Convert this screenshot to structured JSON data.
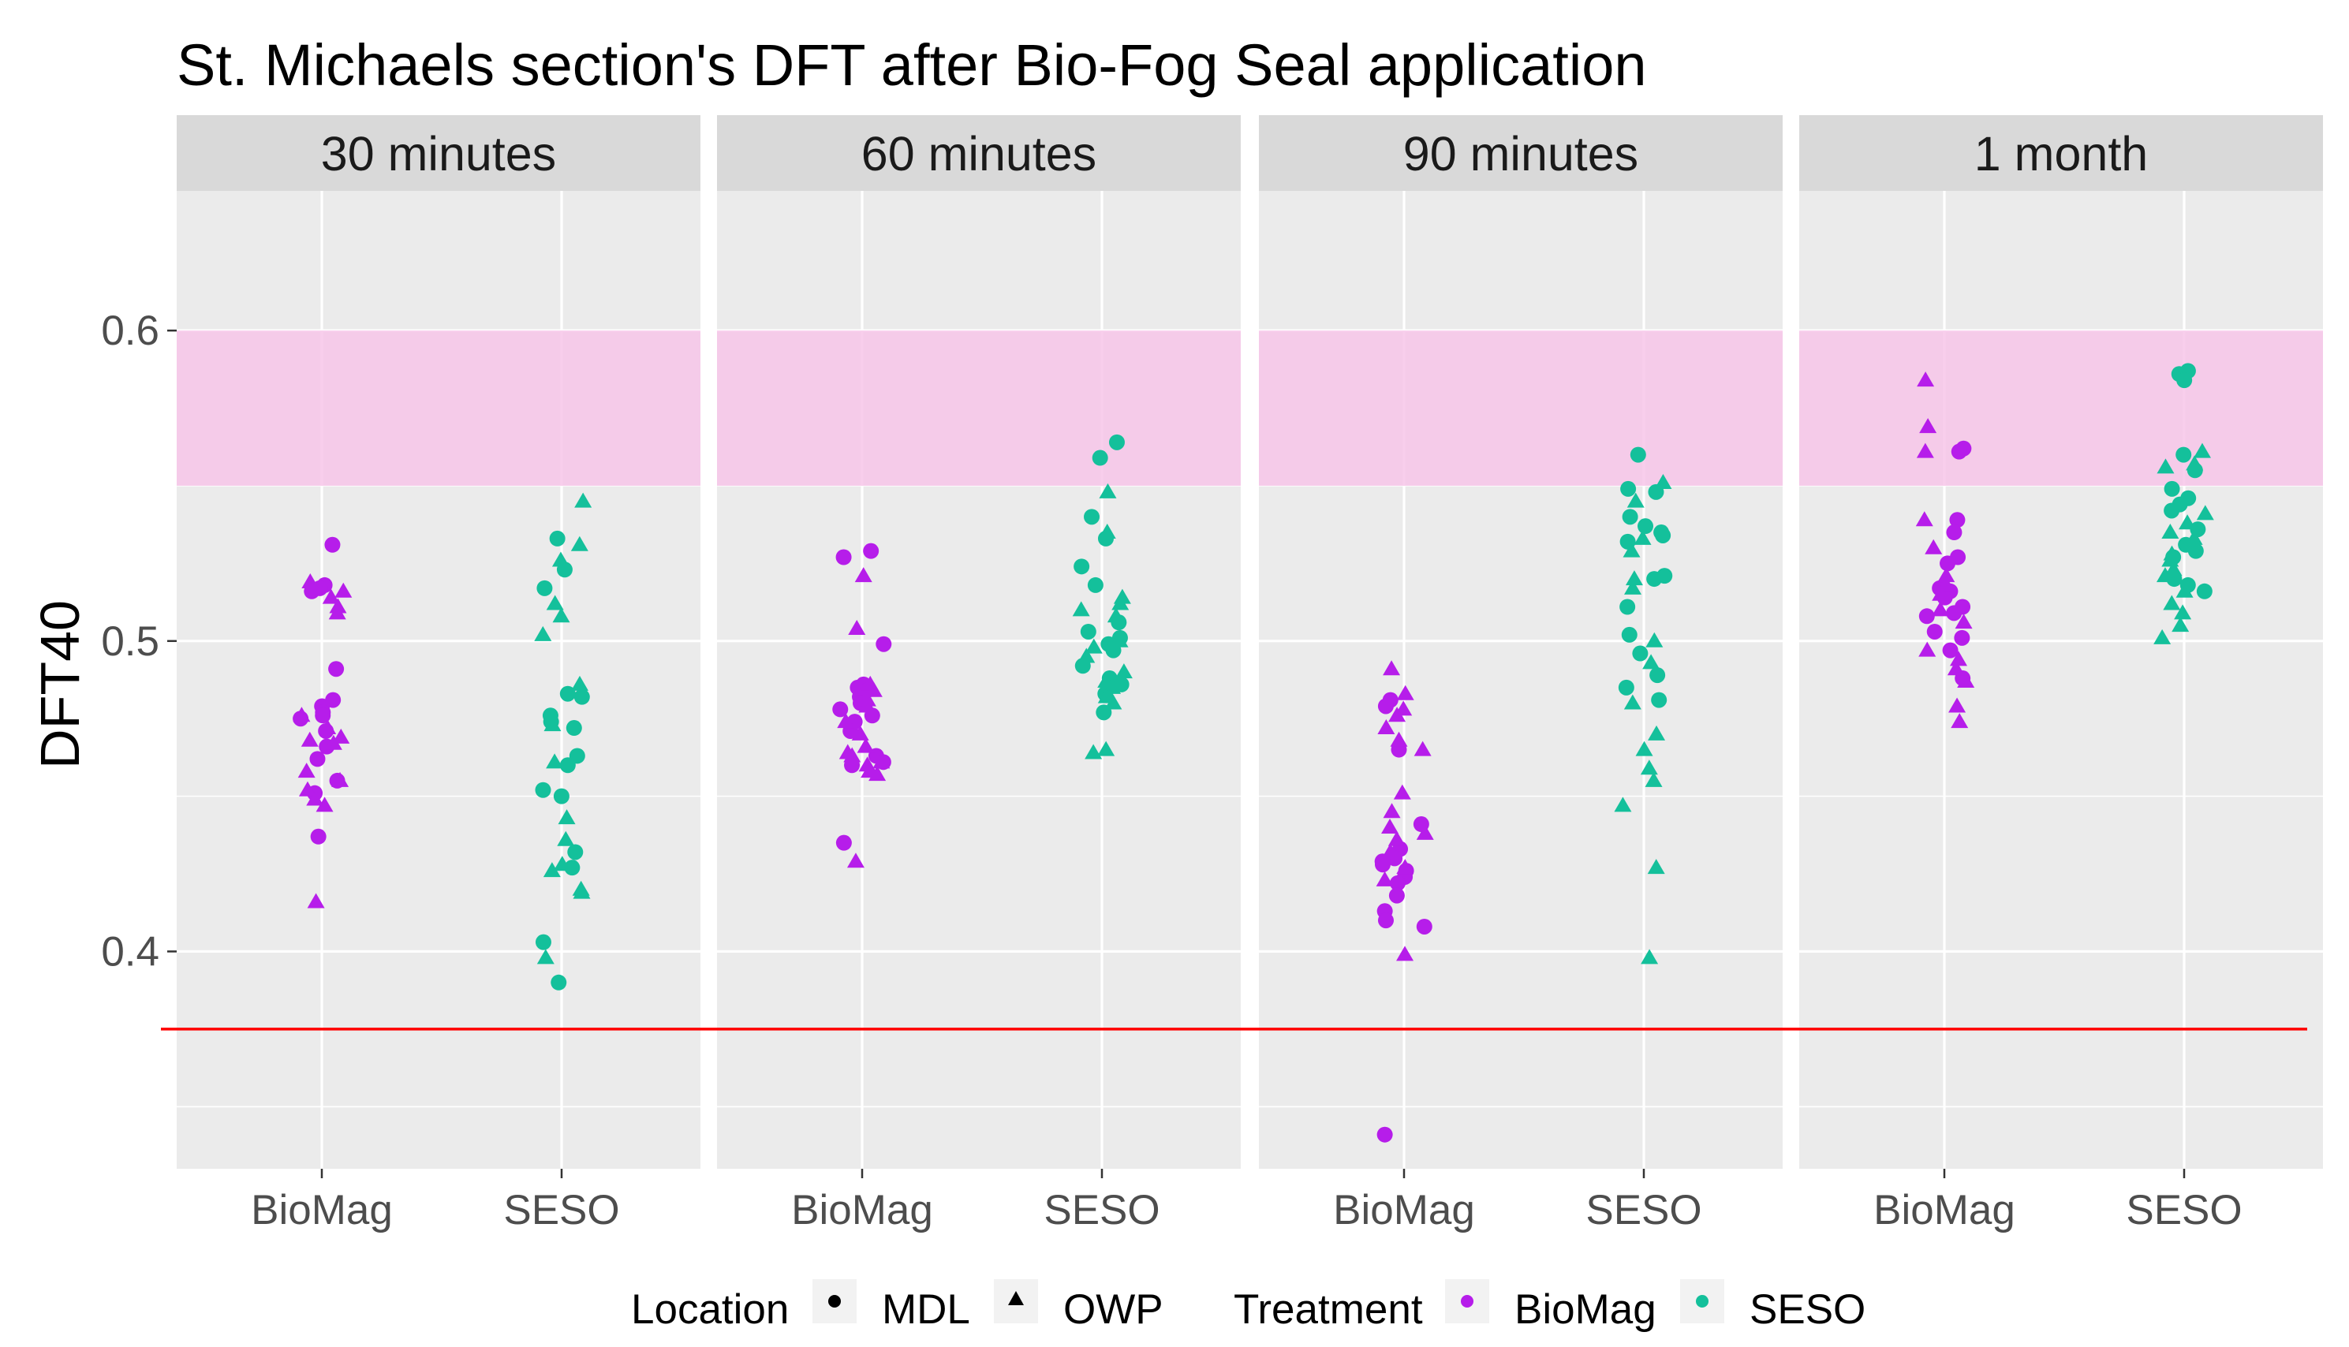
{
  "chart_data": {
    "type": "scatter",
    "title": "St. Michaels section's DFT after Bio-Fog Seal application",
    "xlabel": "",
    "ylabel": "DFT40",
    "ylim": [
      0.33,
      0.645
    ],
    "y_ticks": [
      0.4,
      0.5,
      0.6
    ],
    "y_tick_labels": [
      "0.4",
      "0.5",
      "0.6"
    ],
    "x_tick_labels": [
      "BioMag",
      "SESO"
    ],
    "grid": true,
    "facets": [
      "30 minutes",
      "60 minutes",
      "90 minutes",
      "1 month"
    ],
    "target_band": {
      "y_min": 0.55,
      "y_max": 0.6,
      "color": "#f7c6e9"
    },
    "reference_line": {
      "y": 0.375,
      "color": "#ff0000"
    },
    "colors": {
      "BioMag": "#b61dea",
      "SESO": "#14c09b"
    },
    "legend": {
      "position": "bottom",
      "location_title": "Location",
      "location_entries": [
        {
          "label": "MDL",
          "shape": "circle"
        },
        {
          "label": "OWP",
          "shape": "triangle"
        }
      ],
      "treatment_title": "Treatment",
      "treatment_entries": [
        {
          "label": "BioMag",
          "color": "#b61dea"
        },
        {
          "label": "SESO",
          "color": "#14c09b"
        }
      ]
    },
    "series": [
      {
        "facet": "30 minutes",
        "treatment": "BioMag",
        "MDL": [
          0.531,
          0.518,
          0.517,
          0.516,
          0.491,
          0.481,
          0.479,
          0.477,
          0.476,
          0.475,
          0.471,
          0.466,
          0.462,
          0.455,
          0.451,
          0.437
        ],
        "OWP": [
          0.519,
          0.516,
          0.514,
          0.511,
          0.509,
          0.476,
          0.472,
          0.469,
          0.468,
          0.467,
          0.458,
          0.455,
          0.452,
          0.449,
          0.447,
          0.416
        ]
      },
      {
        "facet": "30 minutes",
        "treatment": "SESO",
        "MDL": [
          0.533,
          0.523,
          0.517,
          0.483,
          0.482,
          0.476,
          0.474,
          0.472,
          0.463,
          0.46,
          0.452,
          0.45,
          0.432,
          0.427,
          0.403,
          0.39
        ],
        "OWP": [
          0.545,
          0.531,
          0.526,
          0.512,
          0.508,
          0.502,
          0.486,
          0.473,
          0.461,
          0.443,
          0.436,
          0.428,
          0.426,
          0.42,
          0.419,
          0.398
        ]
      },
      {
        "facet": "60 minutes",
        "treatment": "BioMag",
        "MDL": [
          0.529,
          0.527,
          0.499,
          0.486,
          0.485,
          0.484,
          0.482,
          0.48,
          0.478,
          0.476,
          0.474,
          0.471,
          0.463,
          0.461,
          0.46,
          0.435
        ],
        "OWP": [
          0.521,
          0.504,
          0.486,
          0.484,
          0.481,
          0.479,
          0.474,
          0.47,
          0.466,
          0.464,
          0.463,
          0.461,
          0.46,
          0.458,
          0.457,
          0.429
        ]
      },
      {
        "facet": "60 minutes",
        "treatment": "SESO",
        "MDL": [
          0.564,
          0.559,
          0.54,
          0.533,
          0.524,
          0.518,
          0.506,
          0.503,
          0.501,
          0.499,
          0.497,
          0.492,
          0.488,
          0.486,
          0.483,
          0.477
        ],
        "OWP": [
          0.548,
          0.535,
          0.514,
          0.512,
          0.51,
          0.508,
          0.5,
          0.498,
          0.495,
          0.49,
          0.487,
          0.485,
          0.482,
          0.48,
          0.465,
          0.464
        ]
      },
      {
        "facet": "90 minutes",
        "treatment": "BioMag",
        "MDL": [
          0.481,
          0.479,
          0.465,
          0.441,
          0.433,
          0.43,
          0.429,
          0.428,
          0.426,
          0.424,
          0.422,
          0.418,
          0.413,
          0.41,
          0.408,
          0.341
        ],
        "OWP": [
          0.491,
          0.483,
          0.478,
          0.476,
          0.472,
          0.468,
          0.465,
          0.451,
          0.445,
          0.44,
          0.438,
          0.436,
          0.432,
          0.427,
          0.423,
          0.399
        ]
      },
      {
        "facet": "90 minutes",
        "treatment": "SESO",
        "MDL": [
          0.56,
          0.549,
          0.548,
          0.54,
          0.537,
          0.535,
          0.534,
          0.532,
          0.521,
          0.52,
          0.511,
          0.502,
          0.496,
          0.489,
          0.485,
          0.481
        ],
        "OWP": [
          0.551,
          0.545,
          0.533,
          0.529,
          0.52,
          0.517,
          0.5,
          0.493,
          0.48,
          0.47,
          0.465,
          0.459,
          0.455,
          0.447,
          0.427,
          0.398
        ]
      },
      {
        "facet": "1 month",
        "treatment": "BioMag",
        "MDL": [
          0.562,
          0.561,
          0.539,
          0.535,
          0.527,
          0.525,
          0.517,
          0.516,
          0.514,
          0.511,
          0.509,
          0.508,
          0.503,
          0.501,
          0.497,
          0.488
        ],
        "OWP": [
          0.584,
          0.569,
          0.561,
          0.539,
          0.53,
          0.521,
          0.518,
          0.515,
          0.51,
          0.506,
          0.497,
          0.494,
          0.491,
          0.487,
          0.479,
          0.474
        ]
      },
      {
        "facet": "1 month",
        "treatment": "SESO",
        "MDL": [
          0.587,
          0.586,
          0.584,
          0.56,
          0.555,
          0.549,
          0.546,
          0.544,
          0.542,
          0.536,
          0.531,
          0.529,
          0.527,
          0.52,
          0.518,
          0.516
        ],
        "OWP": [
          0.561,
          0.557,
          0.556,
          0.541,
          0.538,
          0.535,
          0.533,
          0.528,
          0.526,
          0.523,
          0.521,
          0.516,
          0.512,
          0.509,
          0.505,
          0.501
        ]
      }
    ]
  }
}
